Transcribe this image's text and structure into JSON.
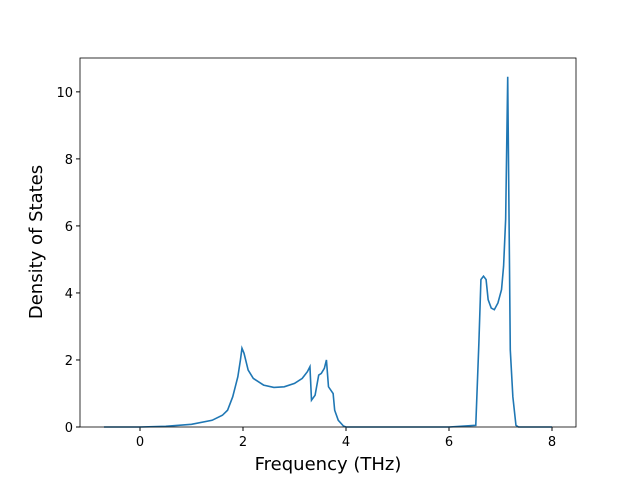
{
  "chart_data": {
    "type": "line",
    "x_label": "Frequency (THz)",
    "y_label": "Density of States",
    "x": [
      -0.7,
      0,
      0.5,
      1.0,
      1.4,
      1.6,
      1.7,
      1.8,
      1.85,
      1.9,
      1.95,
      1.98,
      2.02,
      2.1,
      2.2,
      2.4,
      2.6,
      2.8,
      3.0,
      3.15,
      3.25,
      3.3,
      3.33,
      3.4,
      3.47,
      3.52,
      3.58,
      3.62,
      3.66,
      3.75,
      3.78,
      3.85,
      3.95,
      4.0,
      6.0,
      6.52,
      6.58,
      6.62,
      6.67,
      6.72,
      6.76,
      6.82,
      6.88,
      6.95,
      7.02,
      7.06,
      7.1,
      7.14,
      7.19,
      7.24,
      7.3,
      7.35,
      8.0
    ],
    "series": [
      {
        "color": "#1f77b4",
        "values": [
          0,
          0,
          0.02,
          0.08,
          0.2,
          0.35,
          0.5,
          0.9,
          1.2,
          1.5,
          2.0,
          2.35,
          2.2,
          1.7,
          1.45,
          1.25,
          1.18,
          1.2,
          1.3,
          1.45,
          1.65,
          1.8,
          0.8,
          0.95,
          1.55,
          1.6,
          1.75,
          2.0,
          1.2,
          1.0,
          0.5,
          0.2,
          0.03,
          0,
          0,
          0.05,
          2.5,
          4.4,
          4.5,
          4.4,
          3.8,
          3.55,
          3.5,
          3.7,
          4.1,
          4.8,
          6.2,
          10.45,
          2.3,
          0.9,
          0.05,
          0,
          0
        ]
      }
    ],
    "xlim": [
      -1.165,
      8.466
    ],
    "ylim": [
      0,
      11.01
    ],
    "xticks": [
      0,
      2,
      4,
      6,
      8
    ],
    "yticks": [
      0,
      2,
      4,
      6,
      8,
      10
    ]
  }
}
